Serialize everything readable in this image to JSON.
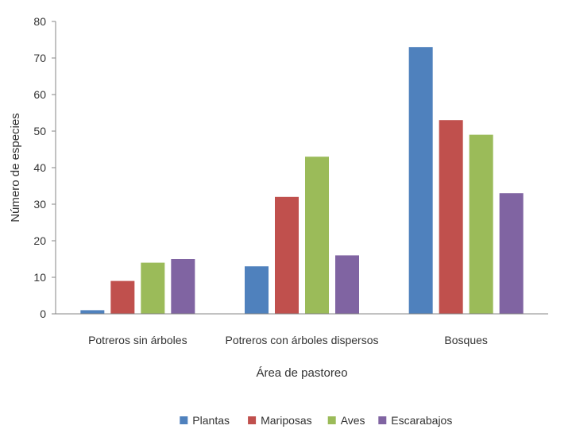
{
  "chart_data": {
    "type": "bar",
    "title": "",
    "xlabel": "Área de pastoreo",
    "ylabel": "Número de especies",
    "ylim": [
      0,
      80
    ],
    "yticks": [
      0,
      10,
      20,
      30,
      40,
      50,
      60,
      70,
      80
    ],
    "grid": false,
    "legend_position": "bottom",
    "categories": [
      "Potreros sin árboles",
      "Potreros con árboles dispersos",
      "Bosques"
    ],
    "series": [
      {
        "name": "Plantas",
        "color": "#4F81BD",
        "values": [
          1,
          13,
          73
        ]
      },
      {
        "name": "Mariposas",
        "color": "#C0504D",
        "values": [
          9,
          32,
          53
        ]
      },
      {
        "name": "Aves",
        "color": "#9BBB59",
        "values": [
          14,
          43,
          49
        ]
      },
      {
        "name": "Escarabajos",
        "color": "#8064A2",
        "values": [
          15,
          16,
          33
        ]
      }
    ]
  }
}
